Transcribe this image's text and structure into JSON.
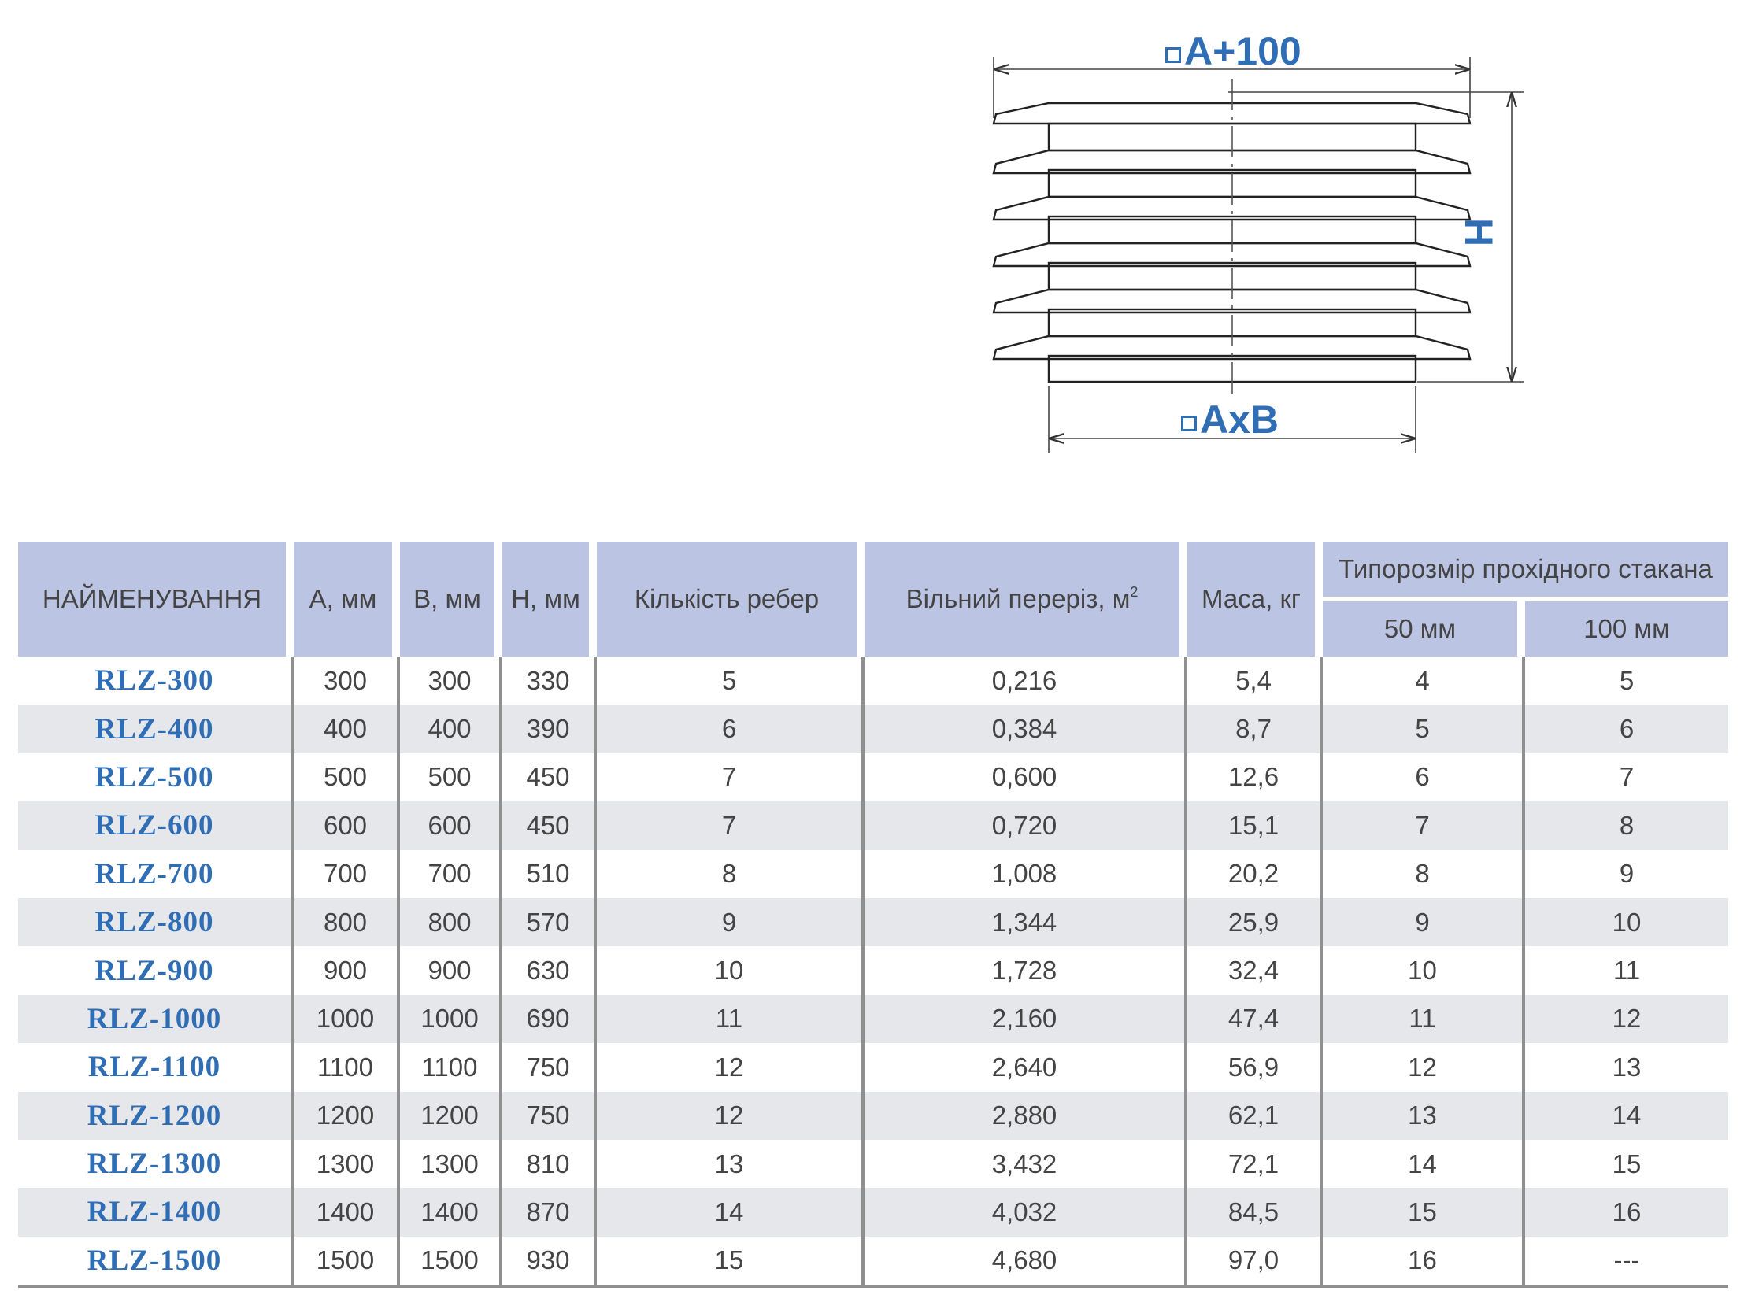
{
  "diagram": {
    "label_top": "A+100",
    "label_bottom": "AxB",
    "label_height": "H"
  },
  "table": {
    "headers": {
      "name": "НАЙМЕНУВАННЯ",
      "a": "А, мм",
      "b": "В, мм",
      "h": "Н, мм",
      "ribs": "Кількість ребер",
      "section": "Вільний переріз, м",
      "section_sup": "2",
      "mass": "Маса, кг",
      "group": "Типорозмір прохідного стакана",
      "sub50": "50 мм",
      "sub100": "100 мм"
    },
    "rows": [
      {
        "name": "RLZ-300",
        "a": "300",
        "b": "300",
        "h": "330",
        "ribs": "5",
        "section": "0,216",
        "mass": "5,4",
        "s50": "4",
        "s100": "5"
      },
      {
        "name": "RLZ-400",
        "a": "400",
        "b": "400",
        "h": "390",
        "ribs": "6",
        "section": "0,384",
        "mass": "8,7",
        "s50": "5",
        "s100": "6"
      },
      {
        "name": "RLZ-500",
        "a": "500",
        "b": "500",
        "h": "450",
        "ribs": "7",
        "section": "0,600",
        "mass": "12,6",
        "s50": "6",
        "s100": "7"
      },
      {
        "name": "RLZ-600",
        "a": "600",
        "b": "600",
        "h": "450",
        "ribs": "7",
        "section": "0,720",
        "mass": "15,1",
        "s50": "7",
        "s100": "8"
      },
      {
        "name": "RLZ-700",
        "a": "700",
        "b": "700",
        "h": "510",
        "ribs": "8",
        "section": "1,008",
        "mass": "20,2",
        "s50": "8",
        "s100": "9"
      },
      {
        "name": "RLZ-800",
        "a": "800",
        "b": "800",
        "h": "570",
        "ribs": "9",
        "section": "1,344",
        "mass": "25,9",
        "s50": "9",
        "s100": "10"
      },
      {
        "name": "RLZ-900",
        "a": "900",
        "b": "900",
        "h": "630",
        "ribs": "10",
        "section": "1,728",
        "mass": "32,4",
        "s50": "10",
        "s100": "11"
      },
      {
        "name": "RLZ-1000",
        "a": "1000",
        "b": "1000",
        "h": "690",
        "ribs": "11",
        "section": "2,160",
        "mass": "47,4",
        "s50": "11",
        "s100": "12"
      },
      {
        "name": "RLZ-1100",
        "a": "1100",
        "b": "1100",
        "h": "750",
        "ribs": "12",
        "section": "2,640",
        "mass": "56,9",
        "s50": "12",
        "s100": "13"
      },
      {
        "name": "RLZ-1200",
        "a": "1200",
        "b": "1200",
        "h": "750",
        "ribs": "12",
        "section": "2,880",
        "mass": "62,1",
        "s50": "13",
        "s100": "14"
      },
      {
        "name": "RLZ-1300",
        "a": "1300",
        "b": "1300",
        "h": "810",
        "ribs": "13",
        "section": "3,432",
        "mass": "72,1",
        "s50": "14",
        "s100": "15"
      },
      {
        "name": "RLZ-1400",
        "a": "1400",
        "b": "1400",
        "h": "870",
        "ribs": "14",
        "section": "4,032",
        "mass": "84,5",
        "s50": "15",
        "s100": "16"
      },
      {
        "name": "RLZ-1500",
        "a": "1500",
        "b": "1500",
        "h": "930",
        "ribs": "15",
        "section": "4,680",
        "mass": "97,0",
        "s50": "16",
        "s100": "---"
      }
    ]
  }
}
